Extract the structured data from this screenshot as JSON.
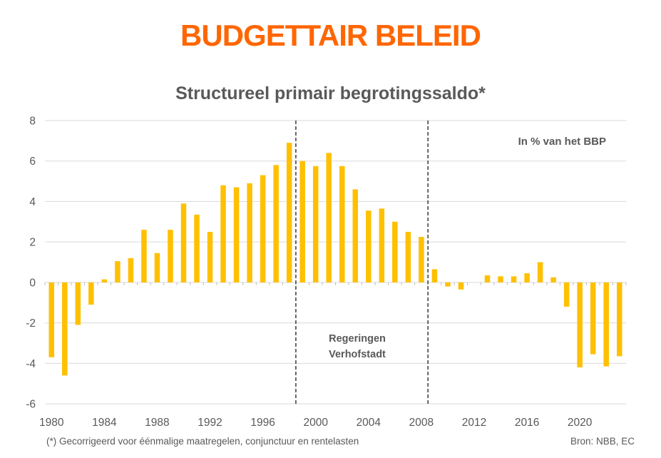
{
  "header": {
    "title": "BUDGETTAIR BELEID",
    "title_color": "#FF6600"
  },
  "chart_data": {
    "type": "bar",
    "title": "Structureel primair begrotingssaldo*",
    "unit_label": "In % van het BBP",
    "categories": [
      1980,
      1981,
      1982,
      1983,
      1984,
      1985,
      1986,
      1987,
      1988,
      1989,
      1990,
      1991,
      1992,
      1993,
      1994,
      1995,
      1996,
      1997,
      1998,
      1999,
      2000,
      2001,
      2002,
      2003,
      2004,
      2005,
      2006,
      2007,
      2008,
      2009,
      2010,
      2011,
      2012,
      2013,
      2014,
      2015,
      2016,
      2017,
      2018,
      2019,
      2020,
      2021,
      2022,
      2023
    ],
    "values": [
      -3.7,
      -4.6,
      -2.1,
      -1.1,
      0.15,
      1.05,
      1.2,
      2.6,
      1.45,
      2.6,
      3.9,
      3.35,
      2.5,
      4.8,
      4.7,
      4.9,
      5.3,
      5.8,
      6.9,
      6.0,
      5.75,
      6.4,
      5.75,
      4.6,
      3.55,
      3.65,
      3.0,
      2.5,
      2.25,
      0.65,
      -0.2,
      -0.35,
      0,
      0.35,
      0.3,
      0.3,
      0.45,
      1.0,
      0.25,
      -1.2,
      -4.2,
      -3.55,
      -4.15,
      -3.65
    ],
    "ylim": [
      -6,
      8
    ],
    "yticks": [
      8,
      6,
      4,
      2,
      0,
      -2,
      -4,
      -6
    ],
    "xticks": [
      1980,
      1984,
      1988,
      1992,
      1996,
      2000,
      2004,
      2008,
      2012,
      2016,
      2020
    ],
    "grid": "horizontal",
    "legend": "none",
    "annotation": {
      "line1": "Regeringen",
      "line2": "Verhofstadt",
      "dashed_after_years": [
        1998,
        2008
      ]
    },
    "colors": {
      "bar": "#FFC000",
      "grid": "#D9D9D9",
      "tick": "#BFBFBF",
      "axis_text": "#595959",
      "dashed_line": "#1A1A1A"
    }
  },
  "footer": {
    "note": "(*) Gecorrigeerd voor éénmalige maatregelen, conjunctuur en rentelasten",
    "source": "Bron: NBB, EC"
  }
}
